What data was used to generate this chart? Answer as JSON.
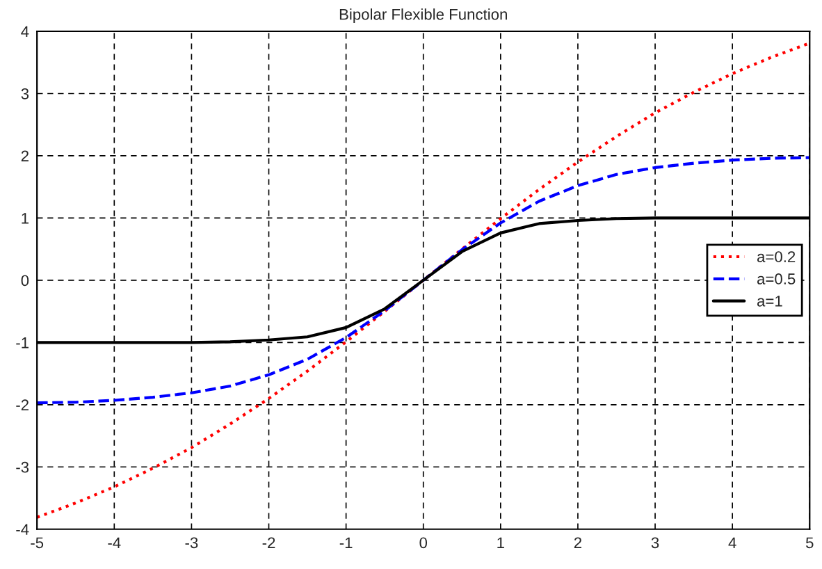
{
  "chart_data": {
    "type": "line",
    "title": "Bipolar Flexible Function",
    "x": [
      -5,
      -4.5,
      -4,
      -3.5,
      -3,
      -2.5,
      -2,
      -1.5,
      -1,
      -0.5,
      0,
      0.5,
      1,
      1.5,
      2,
      2.5,
      3,
      3.5,
      4,
      4.5,
      5
    ],
    "series": [
      {
        "name": "a=0.2",
        "color": "#ff0000",
        "line_style": "dotted",
        "values": [
          -3.81,
          -3.58,
          -3.32,
          -3.02,
          -2.69,
          -2.31,
          -1.9,
          -1.46,
          -0.99,
          -0.5,
          0,
          0.5,
          0.99,
          1.46,
          1.9,
          2.31,
          2.69,
          3.02,
          3.32,
          3.58,
          3.81
        ]
      },
      {
        "name": "a=0.5",
        "color": "#0000ff",
        "line_style": "dashed",
        "values": [
          -1.97,
          -1.96,
          -1.93,
          -1.88,
          -1.81,
          -1.7,
          -1.52,
          -1.27,
          -0.92,
          -0.49,
          0,
          0.49,
          0.92,
          1.27,
          1.52,
          1.7,
          1.81,
          1.88,
          1.93,
          1.96,
          1.97
        ]
      },
      {
        "name": "a=1",
        "color": "#000000",
        "line_style": "solid",
        "values": [
          -1.0,
          -1.0,
          -1.0,
          -1.0,
          -1.0,
          -0.99,
          -0.96,
          -0.91,
          -0.76,
          -0.46,
          0,
          0.46,
          0.76,
          0.91,
          0.96,
          0.99,
          1.0,
          1.0,
          1.0,
          1.0,
          1.0
        ]
      }
    ],
    "xlim": [
      -5,
      5
    ],
    "ylim": [
      -4,
      4
    ],
    "xticks": [
      -5,
      -4,
      -3,
      -2,
      -1,
      0,
      1,
      2,
      3,
      4,
      5
    ],
    "yticks": [
      -4,
      -3,
      -2,
      -1,
      0,
      1,
      2,
      3,
      4
    ],
    "grid": true,
    "legend": "center right"
  }
}
